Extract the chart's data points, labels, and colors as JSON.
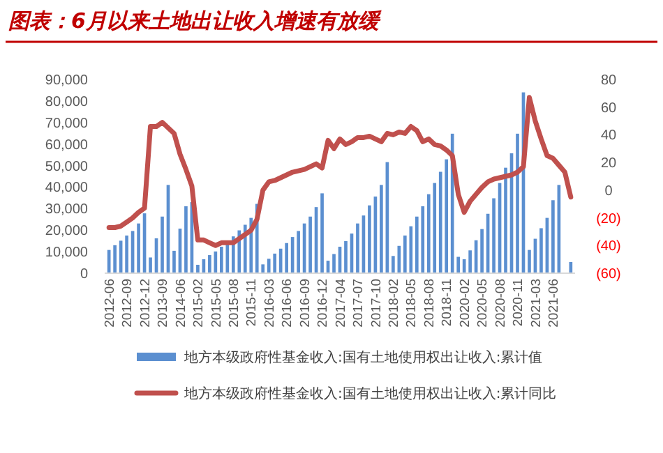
{
  "chart_data": {
    "type": "bar",
    "title": "图表：6月以来土地出让收入增速有放缓",
    "categories": [
      "2012-06",
      null,
      null,
      "2012-09",
      null,
      null,
      "2012-12",
      null,
      null,
      "2013-09",
      null,
      null,
      "2014-06",
      null,
      null,
      "2015-02",
      null,
      null,
      "2015-05",
      null,
      null,
      "2015-08",
      null,
      null,
      "2015-11",
      null,
      null,
      "2016-03",
      null,
      null,
      "2016-06",
      null,
      null,
      "2016-09",
      null,
      null,
      "2016-12",
      null,
      null,
      "2017-04",
      null,
      null,
      "2017-07",
      null,
      null,
      "2017-10",
      null,
      null,
      "2018-02",
      null,
      null,
      "2018-05",
      null,
      null,
      "2018-08",
      null,
      null,
      "2018-11",
      null,
      null,
      "2020-02",
      null,
      null,
      "2020-05",
      null,
      null,
      "2020-08",
      null,
      null,
      "2020-11",
      null,
      null,
      "2021-03",
      null,
      null,
      "2021-06",
      null,
      null,
      null
    ],
    "series": [
      {
        "name": "地方本级政府性基金收入:国有土地使用权出让收入:累计值",
        "color": "#5b8fd0",
        "values": [
          10800,
          13000,
          15100,
          17500,
          19600,
          23100,
          27800,
          7300,
          16200,
          26300,
          41000,
          10400,
          20700,
          31100,
          33000,
          3900,
          6500,
          8400,
          10100,
          12300,
          14500,
          17100,
          19900,
          22500,
          25700,
          32200,
          4100,
          6700,
          9100,
          11400,
          14000,
          16800,
          19600,
          23100,
          26300,
          30700,
          37100,
          5800,
          8900,
          12300,
          14900,
          18400,
          23100,
          26800,
          31500,
          35600,
          41000,
          51600,
          8000,
          12700,
          17500,
          21800,
          26300,
          31100,
          36700,
          41900,
          47100,
          52900,
          64800,
          7600,
          6500,
          10600,
          15300,
          20500,
          27600,
          34800,
          41900,
          49000,
          55700,
          64800,
          84000,
          10800,
          16000,
          20900,
          25700,
          33900,
          41000,
          null,
          5200
        ]
      },
      {
        "name": "地方本级政府性基金收入:国有土地使用权出让收入:累计同比",
        "type": "line",
        "axis": "y2",
        "color": "#c0504d",
        "values": [
          -27,
          -27,
          -26,
          -23,
          -20,
          -16,
          -13,
          46,
          46,
          49,
          45,
          41,
          26,
          15,
          3,
          -36,
          -36,
          -38,
          -40,
          -38,
          -38,
          -38,
          -35,
          -32,
          -29,
          -21,
          0,
          6,
          7,
          9,
          11,
          13,
          14,
          15,
          17,
          19,
          16,
          36,
          30,
          37,
          33,
          35,
          38,
          38,
          39,
          37,
          35,
          41,
          40,
          42,
          41,
          46,
          43,
          35,
          37,
          33,
          32,
          29,
          25,
          -3,
          -16,
          -8,
          -3,
          2,
          6,
          8,
          9,
          10,
          11,
          13,
          17,
          67,
          50,
          37,
          25,
          23,
          18,
          13,
          -5
        ]
      }
    ],
    "ylim": [
      0,
      90000
    ],
    "yticks": [
      {
        "value": 0,
        "label": "0"
      },
      {
        "value": 10000,
        "label": "10,000"
      },
      {
        "value": 20000,
        "label": "20,000"
      },
      {
        "value": 30000,
        "label": "30,000"
      },
      {
        "value": 40000,
        "label": "40,000"
      },
      {
        "value": 50000,
        "label": "50,000"
      },
      {
        "value": 60000,
        "label": "60,000"
      },
      {
        "value": 70000,
        "label": "70,000"
      },
      {
        "value": 80000,
        "label": "80,000"
      },
      {
        "value": 90000,
        "label": "90,000"
      }
    ],
    "y2lim": [
      -60,
      80
    ],
    "y2ticks": [
      {
        "value": -60,
        "label": "(60)"
      },
      {
        "value": -40,
        "label": "(40)"
      },
      {
        "value": -20,
        "label": "(20)"
      },
      0,
      20,
      40,
      60,
      80
    ],
    "legend": "bottom",
    "grid": false
  }
}
